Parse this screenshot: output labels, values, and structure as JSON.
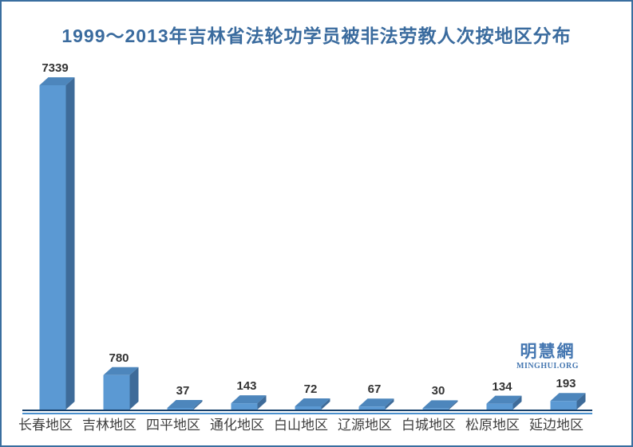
{
  "title": "1999～2013年吉林省法轮功学员被非法劳教人次按地区分布",
  "frame": {
    "border_color": "#3a6e9f",
    "background_color": "#ffffff",
    "title_color": "#3a6b9e"
  },
  "watermark": {
    "name": "明慧網",
    "site": "MINGHUI.ORG",
    "color": "#4577b1"
  },
  "chart_data": {
    "type": "bar",
    "style": "3d",
    "title": "1999～2013年吉林省法轮功学员被非法劳教人次按地区分布",
    "categories": [
      "长春地区",
      "吉林地区",
      "四平地区",
      "通化地区",
      "白山地区",
      "辽源地区",
      "白城地区",
      "松原地区",
      "延边地区"
    ],
    "values": [
      7339,
      780,
      37,
      143,
      72,
      67,
      30,
      134,
      193
    ],
    "xlabel": "",
    "ylabel": "",
    "ylim": [
      0,
      7500
    ],
    "grid": false,
    "legend": false,
    "value_labels_shown": true,
    "bar_colors": {
      "front": "#5b99d3",
      "top": "#4d86bc",
      "side": "#3e6b99"
    },
    "axis_line_colors": {
      "dark": "#17406b",
      "light": "#4a90ce"
    },
    "value_label_color": "#333333",
    "category_label_color": "#3f3f3f"
  }
}
